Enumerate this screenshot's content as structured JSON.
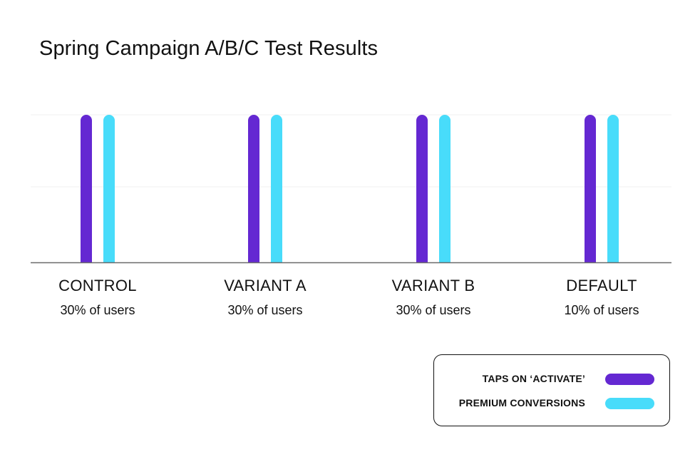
{
  "chart_data": {
    "type": "bar",
    "title": "Spring Campaign A/B/C Test Results",
    "categories": [
      "CONTROL",
      "VARIANT A",
      "VARIANT B",
      "DEFAULT"
    ],
    "category_subtitles": [
      "30% of users",
      "30% of users",
      "30% of users",
      "10% of users"
    ],
    "series": [
      {
        "name": "TAPS ON ‘ACTIVATE’",
        "color": "#6428d2",
        "values": [
          100,
          100,
          100,
          100
        ]
      },
      {
        "name": "PREMIUM CONVERSIONS",
        "color": "#48dcfa",
        "values": [
          100,
          100,
          100,
          100
        ]
      }
    ],
    "ylim": [
      0,
      100
    ],
    "grid": true,
    "legend_position": "bottom-right",
    "xlabel": "",
    "ylabel": ""
  }
}
